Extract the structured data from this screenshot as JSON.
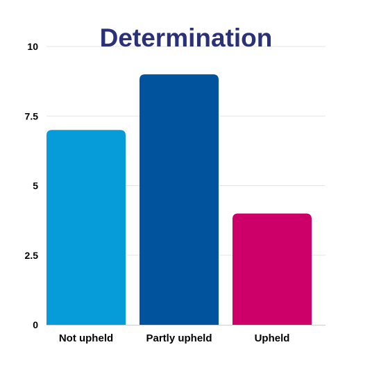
{
  "chart_data": {
    "type": "bar",
    "title": "Determination",
    "categories": [
      "Not upheld",
      "Partly upheld",
      "Upheld"
    ],
    "values": [
      7,
      9,
      4
    ],
    "colors": [
      "#069cd9",
      "#01539e",
      "#cc0068"
    ],
    "xlabel": "",
    "ylabel": "",
    "ylim": [
      0,
      10
    ],
    "yticks": [
      0,
      2.5,
      5,
      7.5,
      10
    ],
    "ytick_labels": [
      "0",
      "2.5",
      "5",
      "7.5",
      "10"
    ],
    "grid": true,
    "legend": false
  },
  "theme": {
    "title_color": "#2b3178",
    "grid_color": "#e6e6e6",
    "axis_color": "#d0d0d0"
  }
}
